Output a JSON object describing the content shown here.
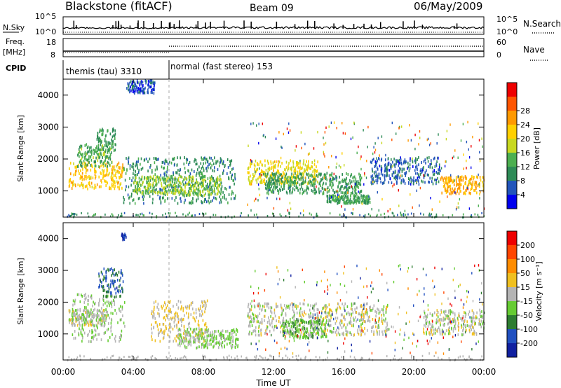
{
  "header": {
    "station": "Blackstone (fitACF)",
    "beam": "Beam 09",
    "date": "06/May/2009"
  },
  "panels": {
    "nsky": {
      "label": "N.Sky",
      "left_ticks": [
        "10^5",
        "10^0"
      ],
      "right_label": "N.Search",
      "right_ticks": [
        "10^5",
        "10^0"
      ]
    },
    "freq": {
      "label_line1": "Freq.",
      "label_line2": "[MHz]",
      "left_ticks": [
        "18",
        "8"
      ],
      "right_label": "Nave",
      "right_ticks": [
        "60",
        "0"
      ]
    },
    "cpid": {
      "label": "CPID",
      "segments": [
        "themis (tau) 3310",
        "normal (fast stereo) 153"
      ]
    }
  },
  "time_axis": {
    "label": "Time UT",
    "ticks": [
      "00:00",
      "04:00",
      "08:00",
      "12:00",
      "16:00",
      "20:00",
      "00:00"
    ]
  },
  "range_axis": {
    "label": "Slant Range [km]",
    "ticks": [
      "1000",
      "2000",
      "3000",
      "4000"
    ]
  },
  "power_scale": {
    "label": "Power [dB]",
    "ticks": [
      "4",
      "8",
      "12",
      "16",
      "20",
      "24",
      "28"
    ],
    "colors": [
      "#0000ee",
      "#2255bb",
      "#2e8b57",
      "#4caf50",
      "#c8d820",
      "#ffd000",
      "#ff9900",
      "#ff5500",
      "#ee0000"
    ]
  },
  "velocity_scale": {
    "label": "Velocity [m s⁻¹]",
    "ticks": [
      "200",
      "100",
      "50",
      "15",
      "-15",
      "-50",
      "-100",
      "-200"
    ],
    "colors": [
      "#1020a0",
      "#2050c0",
      "#2e7d32",
      "#66cc33",
      "#b4b4b4",
      "#f0c020",
      "#ff8c00",
      "#ff4500",
      "#ee0000"
    ]
  },
  "chart_data": [
    {
      "type": "heatmap",
      "title": "",
      "xlabel": "Time UT",
      "ylabel": "Slant Range [km]",
      "xlim": [
        0,
        24
      ],
      "ylim": [
        180,
        4500
      ],
      "colorbar": {
        "label": "Power [dB]",
        "range": [
          0,
          32
        ]
      },
      "blobs": [
        {
          "t0": 0.3,
          "t1": 3.4,
          "r0": 1100,
          "r1": 1950,
          "value": 20
        },
        {
          "t0": 0.8,
          "t1": 2.8,
          "r0": 1800,
          "r1": 2500,
          "value": 12
        },
        {
          "t0": 1.9,
          "t1": 3.0,
          "r0": 2300,
          "r1": 3000,
          "value": 10
        },
        {
          "t0": 3.4,
          "t1": 9.8,
          "r0": 650,
          "r1": 2100,
          "value": 9
        },
        {
          "t0": 4.0,
          "t1": 9.0,
          "r0": 900,
          "r1": 1500,
          "value": 14
        },
        {
          "t0": 10.5,
          "t1": 14.5,
          "r0": 1250,
          "r1": 2000,
          "value": 18
        },
        {
          "t0": 11.5,
          "t1": 17.0,
          "r0": 950,
          "r1": 1600,
          "value": 10
        },
        {
          "t0": 15.0,
          "t1": 17.5,
          "r0": 650,
          "r1": 900,
          "value": 11
        },
        {
          "t0": 17.5,
          "t1": 21.5,
          "r0": 1250,
          "r1": 2100,
          "value": 6
        },
        {
          "t0": 21.5,
          "t1": 24.0,
          "r0": 950,
          "r1": 1500,
          "value": 22
        },
        {
          "t0": 3.6,
          "t1": 5.2,
          "r0": 4100,
          "r1": 4500,
          "value": 5
        }
      ]
    },
    {
      "type": "heatmap",
      "title": "",
      "xlabel": "Time UT",
      "ylabel": "Slant Range [km]",
      "xlim": [
        0,
        24
      ],
      "ylim": [
        180,
        4500
      ],
      "colorbar": {
        "label": "Velocity [m s⁻¹]",
        "range": [
          -250,
          250
        ]
      },
      "blobs": [
        {
          "t0": 0.3,
          "t1": 2.5,
          "r0": 1300,
          "r1": 1800,
          "value": 0
        },
        {
          "t0": 0.5,
          "t1": 3.5,
          "r0": 800,
          "r1": 2300,
          "value": -20
        },
        {
          "t0": 2.0,
          "t1": 3.4,
          "r0": 2200,
          "r1": 3100,
          "value": -150
        },
        {
          "t0": 3.3,
          "t1": 3.6,
          "r0": 4000,
          "r1": 4200,
          "value": -200
        },
        {
          "t0": 5.0,
          "t1": 8.2,
          "r0": 800,
          "r1": 2100,
          "value": 40
        },
        {
          "t0": 6.5,
          "t1": 10.0,
          "r0": 600,
          "r1": 1200,
          "value": -30
        },
        {
          "t0": 10.5,
          "t1": 18.5,
          "r0": 1000,
          "r1": 2000,
          "value": 0
        },
        {
          "t0": 12.5,
          "t1": 15.0,
          "r0": 900,
          "r1": 1500,
          "value": -60
        },
        {
          "t0": 20.5,
          "t1": 24.0,
          "r0": 1000,
          "r1": 1800,
          "value": 0
        }
      ]
    }
  ]
}
